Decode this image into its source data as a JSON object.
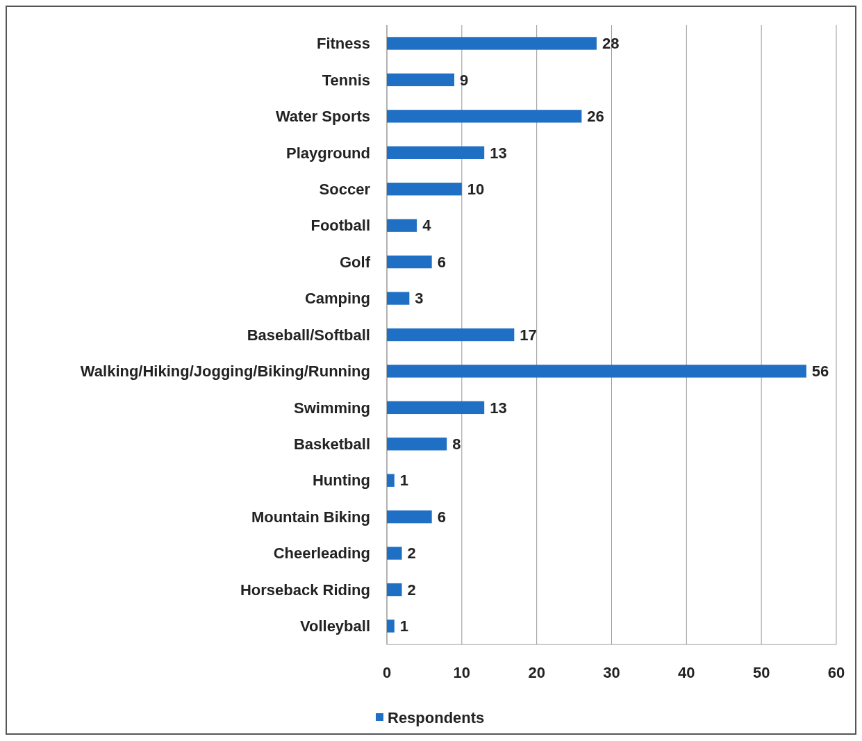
{
  "chart_data": {
    "type": "bar",
    "orientation": "horizontal",
    "categories": [
      "Fitness",
      "Tennis",
      "Water Sports",
      "Playground",
      "Soccer",
      "Football",
      "Golf",
      "Camping",
      "Baseball/Softball",
      "Walking/Hiking/Jogging/Biking/Running",
      "Swimming",
      "Basketball",
      "Hunting",
      "Mountain Biking",
      "Cheerleading",
      "Horseback Riding",
      "Volleyball"
    ],
    "series": [
      {
        "name": "Respondents",
        "color": "#1f6fc4",
        "values": [
          28,
          9,
          26,
          13,
          10,
          4,
          6,
          3,
          17,
          56,
          13,
          8,
          1,
          6,
          2,
          2,
          1
        ]
      }
    ],
    "xlim": [
      0,
      60
    ],
    "xticks": [
      0,
      10,
      20,
      30,
      40,
      50,
      60
    ],
    "grid": "x",
    "legend": "bottom",
    "data_labels": true
  }
}
